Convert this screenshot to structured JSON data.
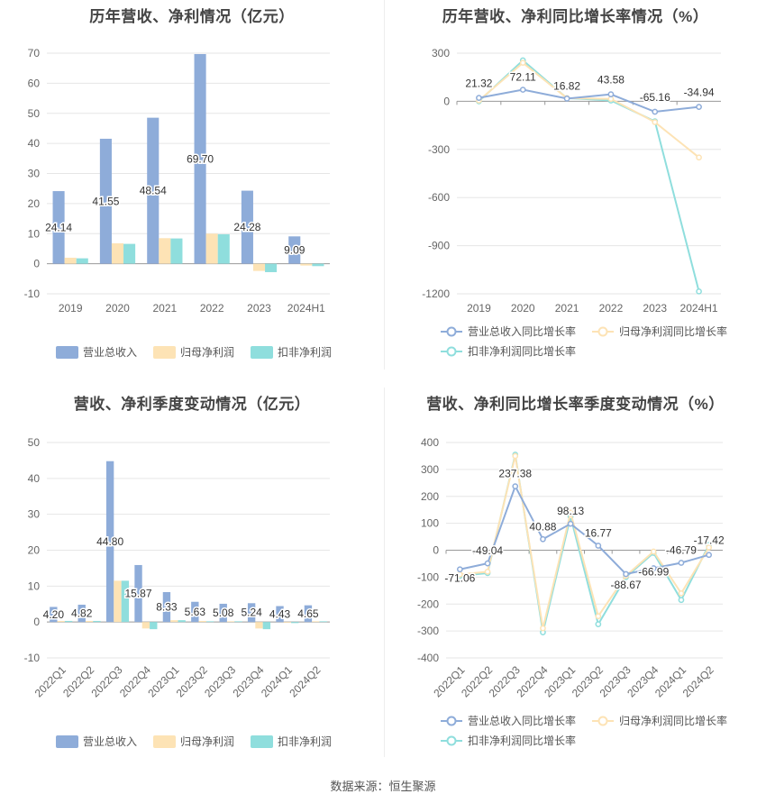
{
  "source": "数据来源：恒生聚源",
  "chart_data": [
    {
      "type": "bar",
      "title": "历年营收、净利情况（亿元）",
      "categories": [
        "2019",
        "2020",
        "2021",
        "2022",
        "2023",
        "2024H1"
      ],
      "ylim": [
        -10,
        70
      ],
      "yticks": [
        -10,
        0,
        10,
        20,
        30,
        40,
        50,
        60,
        70
      ],
      "series": [
        {
          "name": "营业总收入",
          "color": "#8eacd9",
          "values": [
            24.14,
            41.55,
            48.54,
            69.7,
            24.28,
            9.09
          ],
          "labels": [
            "24.14",
            "41.55",
            "48.54",
            "69.70",
            "24.28",
            "9.09"
          ]
        },
        {
          "name": "归母净利润",
          "color": "#fde3b5",
          "values": [
            2.0,
            6.8,
            8.5,
            10.0,
            -2.4,
            -0.6
          ]
        },
        {
          "name": "扣非净利润",
          "color": "#8fdedd",
          "values": [
            1.8,
            6.6,
            8.4,
            9.8,
            -2.8,
            -0.8
          ]
        }
      ],
      "legend": "bottom",
      "grid": true
    },
    {
      "type": "line",
      "title": "历年营收、净利同比增长率情况（%）",
      "categories": [
        "2019",
        "2020",
        "2021",
        "2022",
        "2023",
        "2024H1"
      ],
      "ylim": [
        -1200,
        300
      ],
      "yticks": [
        -1200,
        -900,
        -600,
        -300,
        0,
        300
      ],
      "series": [
        {
          "name": "营业总收入同比增长率",
          "color": "#8eacd9",
          "values": [
            21.32,
            72.11,
            16.82,
            43.58,
            -65.16,
            -34.94
          ],
          "labels": [
            "21.32",
            "72.11",
            "16.82",
            "43.58",
            "-65.16",
            "-34.94"
          ]
        },
        {
          "name": "归母净利润同比增长率",
          "color": "#fde3b5",
          "values": [
            5,
            240,
            20,
            15,
            -130,
            -350
          ]
        },
        {
          "name": "扣非净利润同比增长率",
          "color": "#8fdedd",
          "values": [
            0,
            255,
            20,
            5,
            -125,
            -1185
          ]
        }
      ],
      "legend": "bottom",
      "grid": true
    },
    {
      "type": "bar",
      "title": "营收、净利季度变动情况（亿元）",
      "categories": [
        "2022Q1",
        "2022Q2",
        "2022Q3",
        "2022Q4",
        "2023Q1",
        "2023Q2",
        "2023Q3",
        "2023Q4",
        "2024Q1",
        "2024Q2"
      ],
      "ylim": [
        -10,
        50
      ],
      "yticks": [
        -10,
        0,
        10,
        20,
        30,
        40,
        50
      ],
      "series": [
        {
          "name": "营业总收入",
          "color": "#8eacd9",
          "values": [
            4.2,
            4.82,
            44.8,
            15.87,
            8.33,
            5.63,
            5.08,
            5.24,
            4.43,
            4.65
          ],
          "labels": [
            "4.20",
            "4.82",
            "44.80",
            "15.87",
            "8.33",
            "5.63",
            "5.08",
            "5.24",
            "4.43",
            "4.65"
          ]
        },
        {
          "name": "归母净利润",
          "color": "#fde3b5",
          "values": [
            0.3,
            0.3,
            11.5,
            -1.8,
            0.5,
            0.3,
            0.2,
            -1.8,
            -0.2,
            0.2
          ]
        },
        {
          "name": "扣非净利润",
          "color": "#8fdedd",
          "values": [
            0.3,
            0.3,
            11.5,
            -2.0,
            0.5,
            0.2,
            0.2,
            -2.0,
            -0.3,
            0.2
          ]
        }
      ],
      "legend": "bottom",
      "grid": true
    },
    {
      "type": "line",
      "title": "营收、净利同比增长率季度变动情况（%）",
      "categories": [
        "2022Q1",
        "2022Q2",
        "2022Q3",
        "2022Q4",
        "2023Q1",
        "2023Q2",
        "2023Q3",
        "2023Q4",
        "2024Q1",
        "2024Q2"
      ],
      "ylim": [
        -400,
        400
      ],
      "yticks": [
        -400,
        -300,
        -200,
        -100,
        0,
        100,
        200,
        300,
        400
      ],
      "series": [
        {
          "name": "营业总收入同比增长率",
          "color": "#8eacd9",
          "values": [
            -71.06,
            -49.04,
            237.38,
            40.88,
            98.13,
            16.77,
            -88.67,
            -66.99,
            -46.79,
            -17.42
          ],
          "labels": [
            "-71.06",
            "-49.04",
            "237.38",
            "40.88",
            "98.13",
            "16.77",
            "-88.67",
            "-66.99",
            "-46.79",
            "-17.42"
          ]
        },
        {
          "name": "归母净利润同比增长率",
          "color": "#fde3b5",
          "values": [
            -90,
            -80,
            350,
            -290,
            140,
            -245,
            -95,
            -5,
            -160,
            10
          ]
        },
        {
          "name": "扣非净利润同比增长率",
          "color": "#8fdedd",
          "values": [
            -95,
            -85,
            355,
            -305,
            125,
            -275,
            -100,
            -10,
            -185,
            20
          ]
        }
      ],
      "legend": "bottom",
      "grid": true
    }
  ]
}
